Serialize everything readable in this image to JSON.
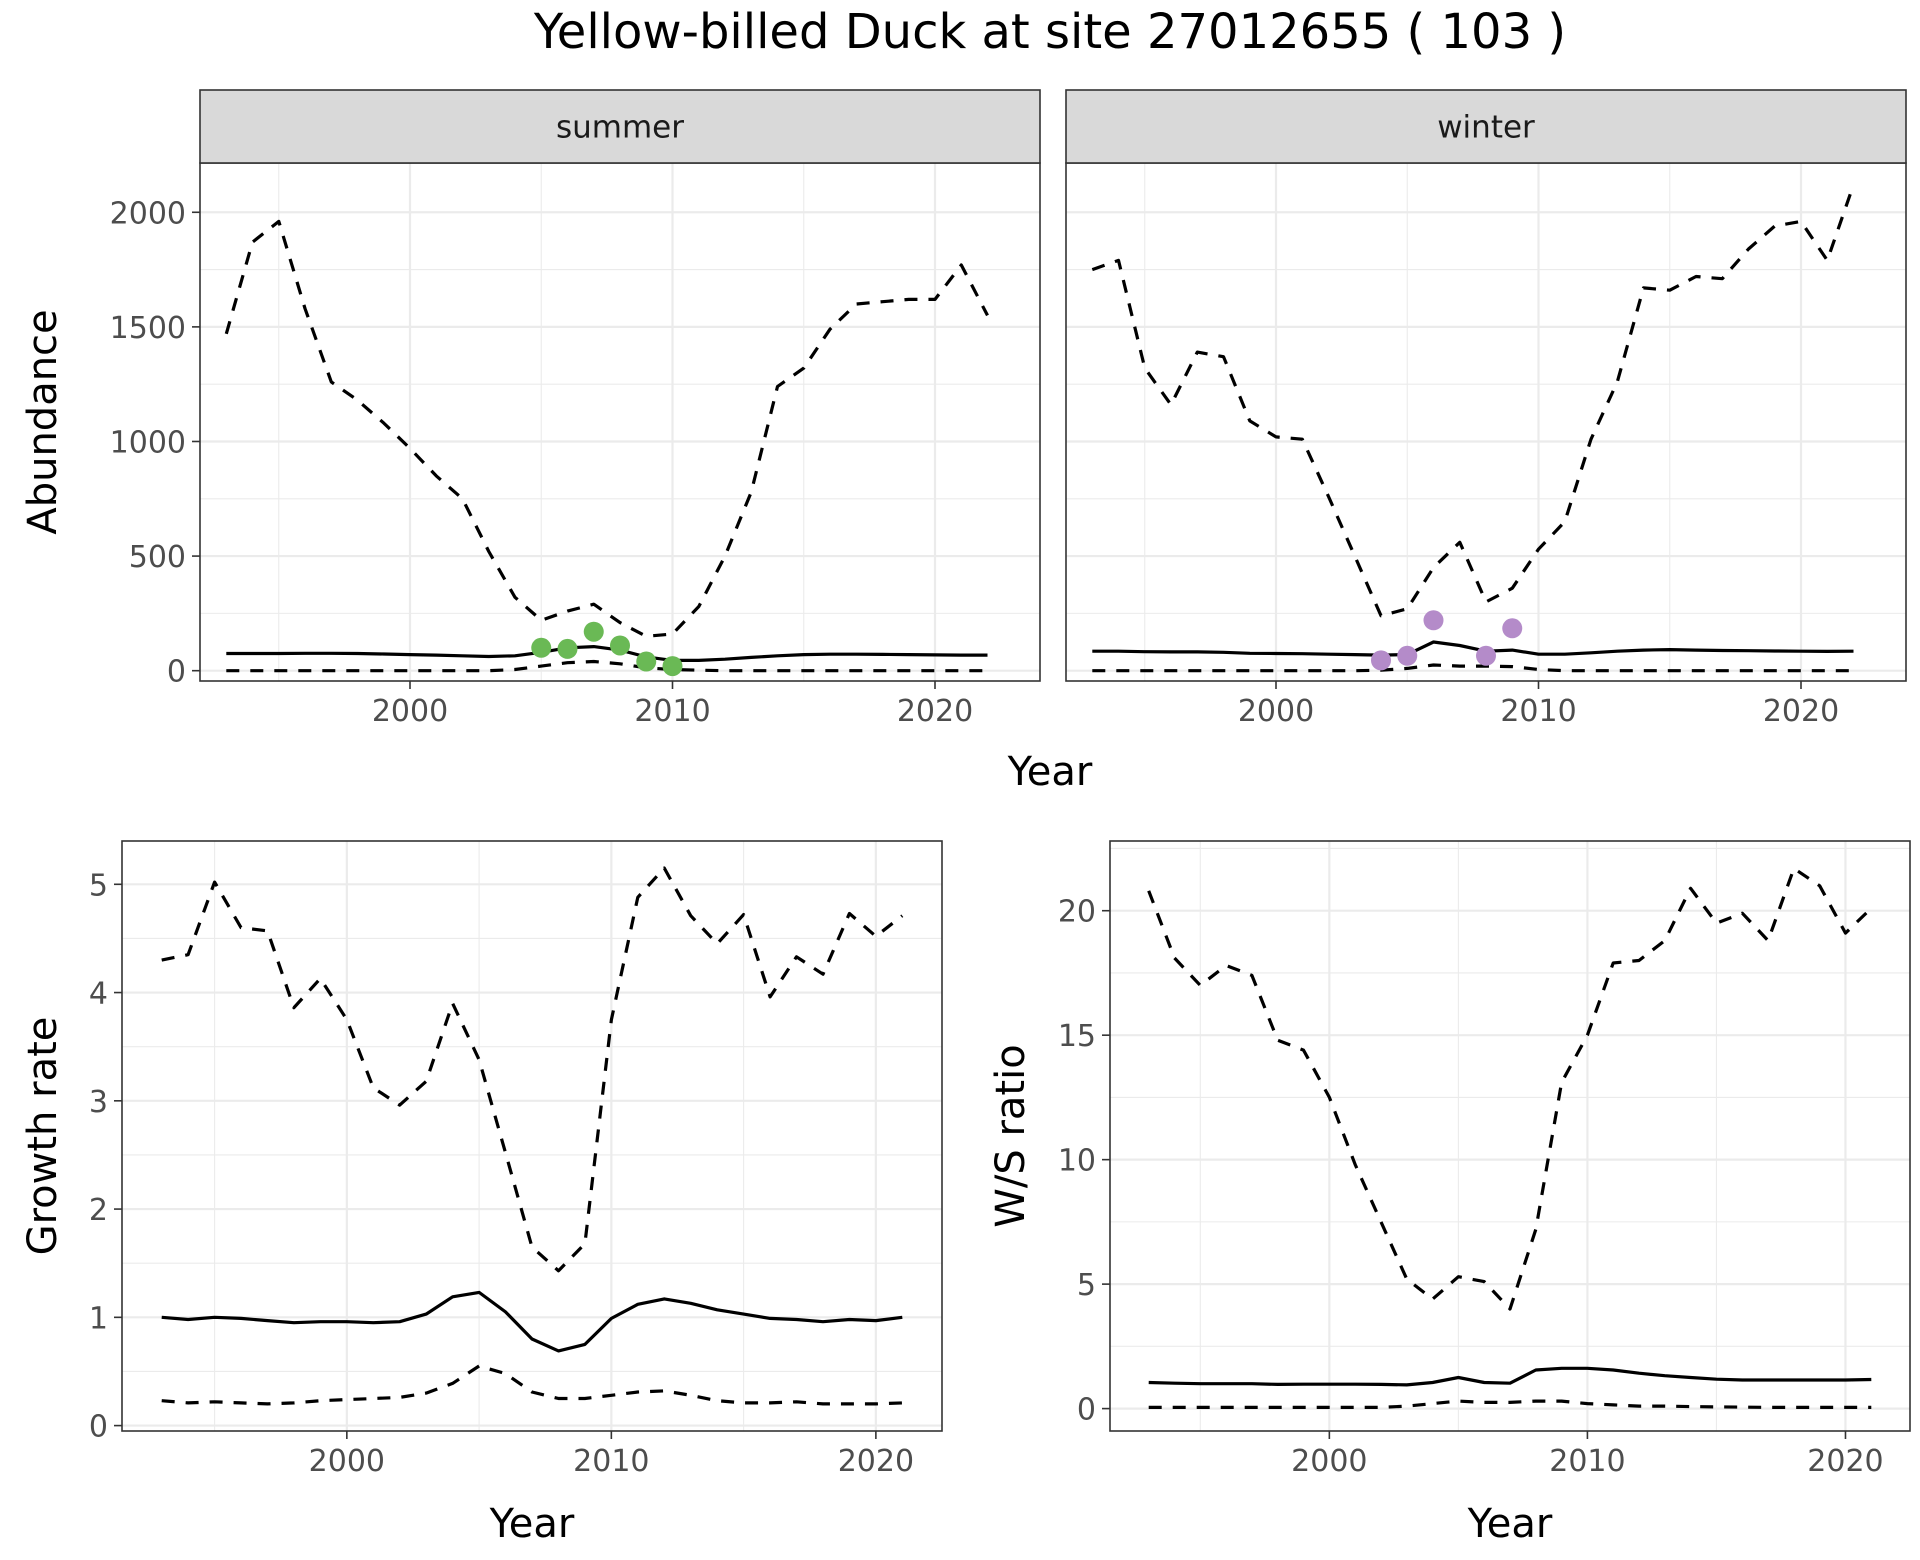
{
  "figure": {
    "title": "Yellow-billed Duck at site 27012655 ( 103 )"
  },
  "chart_data": [
    {
      "type": "line",
      "panel": "summer",
      "strip_label": "summer",
      "xlabel": "Year",
      "ylabel": "Abundance",
      "xlim": [
        1992,
        2024
      ],
      "ylim": [
        -45,
        2215
      ],
      "xticks": [
        2000,
        2010,
        2020
      ],
      "yticks": [
        0,
        500,
        1000,
        1500,
        2000
      ],
      "grid": true,
      "x": [
        1993,
        1994,
        1995,
        1996,
        1997,
        1998,
        1999,
        2000,
        2001,
        2002,
        2003,
        2004,
        2005,
        2006,
        2007,
        2008,
        2009,
        2010,
        2011,
        2012,
        2013,
        2014,
        2015,
        2016,
        2017,
        2018,
        2019,
        2020,
        2021,
        2022
      ],
      "series": [
        {
          "role": "mean",
          "values": [
            75,
            75,
            75,
            76,
            76,
            75,
            73,
            70,
            68,
            65,
            62,
            65,
            80,
            100,
            105,
            90,
            60,
            45,
            45,
            50,
            58,
            65,
            70,
            72,
            72,
            71,
            70,
            69,
            68,
            68
          ]
        },
        {
          "role": "upper",
          "values": [
            1470,
            1870,
            1960,
            1580,
            1260,
            1180,
            1080,
            970,
            850,
            750,
            520,
            320,
            220,
            260,
            290,
            210,
            150,
            160,
            280,
            500,
            780,
            1240,
            1320,
            1490,
            1600,
            1610,
            1620,
            1620,
            1770,
            1550
          ]
        },
        {
          "role": "lower",
          "values": [
            0,
            0,
            0,
            0,
            0,
            0,
            0,
            0,
            0,
            0,
            0,
            5,
            20,
            35,
            40,
            30,
            12,
            5,
            2,
            0,
            0,
            0,
            0,
            0,
            0,
            0,
            0,
            0,
            0,
            0
          ]
        }
      ],
      "points": {
        "color": "#6ab955",
        "x": [
          2005,
          2006,
          2007,
          2008,
          2009,
          2010
        ],
        "y": [
          100,
          95,
          170,
          110,
          40,
          20
        ]
      }
    },
    {
      "type": "line",
      "panel": "winter",
      "strip_label": "winter",
      "xlabel": "Year",
      "ylabel": "Abundance",
      "xlim": [
        1992,
        2024
      ],
      "ylim": [
        -45,
        2215
      ],
      "xticks": [
        2000,
        2010,
        2020
      ],
      "yticks": [
        0,
        500,
        1000,
        1500,
        2000
      ],
      "grid": true,
      "x": [
        1993,
        1994,
        1995,
        1996,
        1997,
        1998,
        1999,
        2000,
        2001,
        2002,
        2003,
        2004,
        2005,
        2006,
        2007,
        2008,
        2009,
        2010,
        2011,
        2012,
        2013,
        2014,
        2015,
        2016,
        2017,
        2018,
        2019,
        2020,
        2021,
        2022
      ],
      "series": [
        {
          "role": "mean",
          "values": [
            85,
            85,
            83,
            82,
            82,
            80,
            76,
            75,
            74,
            72,
            70,
            68,
            70,
            125,
            110,
            85,
            90,
            72,
            72,
            78,
            85,
            90,
            92,
            90,
            88,
            87,
            86,
            85,
            84,
            85
          ]
        },
        {
          "role": "upper",
          "values": [
            1750,
            1790,
            1320,
            1160,
            1390,
            1370,
            1090,
            1020,
            1010,
            760,
            500,
            240,
            270,
            450,
            560,
            300,
            360,
            530,
            650,
            1010,
            1260,
            1670,
            1660,
            1720,
            1710,
            1840,
            1940,
            1960,
            1790,
            2120
          ]
        },
        {
          "role": "lower",
          "values": [
            0,
            0,
            0,
            0,
            0,
            0,
            0,
            0,
            0,
            0,
            0,
            2,
            10,
            25,
            20,
            20,
            18,
            5,
            0,
            0,
            0,
            0,
            0,
            0,
            0,
            0,
            0,
            0,
            0,
            0
          ]
        }
      ],
      "points": {
        "color": "#b48bc9",
        "x": [
          2004,
          2005,
          2006,
          2008,
          2009
        ],
        "y": [
          45,
          65,
          220,
          65,
          185
        ]
      }
    },
    {
      "type": "line",
      "panel": "growth",
      "xlabel": "Year",
      "ylabel": "Growth rate",
      "xlim": [
        1991.5,
        2022.5
      ],
      "ylim": [
        -0.05,
        5.4
      ],
      "xticks": [
        2000,
        2010,
        2020
      ],
      "yticks": [
        0,
        1,
        2,
        3,
        4,
        5
      ],
      "grid": true,
      "x": [
        1993,
        1994,
        1995,
        1996,
        1997,
        1998,
        1999,
        2000,
        2001,
        2002,
        2003,
        2004,
        2005,
        2006,
        2007,
        2008,
        2009,
        2010,
        2011,
        2012,
        2013,
        2014,
        2015,
        2016,
        2017,
        2018,
        2019,
        2020,
        2021
      ],
      "series": [
        {
          "role": "mean",
          "values": [
            1.0,
            0.98,
            1.0,
            0.99,
            0.97,
            0.95,
            0.96,
            0.96,
            0.95,
            0.96,
            1.03,
            1.19,
            1.23,
            1.05,
            0.8,
            0.69,
            0.75,
            0.99,
            1.12,
            1.17,
            1.13,
            1.07,
            1.03,
            0.99,
            0.98,
            0.96,
            0.98,
            0.97,
            1.0
          ]
        },
        {
          "role": "upper",
          "values": [
            4.3,
            4.35,
            5.02,
            4.6,
            4.57,
            3.86,
            4.13,
            3.75,
            3.12,
            2.96,
            3.18,
            3.9,
            3.38,
            2.52,
            1.65,
            1.43,
            1.68,
            3.75,
            4.88,
            5.15,
            4.71,
            4.45,
            4.72,
            3.96,
            4.33,
            4.17,
            4.73,
            4.52,
            4.71
          ]
        },
        {
          "role": "lower",
          "values": [
            0.23,
            0.21,
            0.22,
            0.21,
            0.2,
            0.21,
            0.23,
            0.24,
            0.25,
            0.26,
            0.3,
            0.39,
            0.55,
            0.48,
            0.31,
            0.25,
            0.25,
            0.28,
            0.31,
            0.32,
            0.28,
            0.23,
            0.21,
            0.21,
            0.22,
            0.2,
            0.2,
            0.2,
            0.21
          ]
        }
      ]
    },
    {
      "type": "line",
      "panel": "ratio",
      "xlabel": "Year",
      "ylabel": "W/S ratio",
      "xlim": [
        1991.5,
        2022.5
      ],
      "ylim": [
        -0.9,
        22.8
      ],
      "xticks": [
        2000,
        2010,
        2020
      ],
      "yticks": [
        0,
        5,
        10,
        15,
        20
      ],
      "grid": true,
      "x": [
        1993,
        1994,
        1995,
        1996,
        1997,
        1998,
        1999,
        2000,
        2001,
        2002,
        2003,
        2004,
        2005,
        2006,
        2007,
        2008,
        2009,
        2010,
        2011,
        2012,
        2013,
        2014,
        2015,
        2016,
        2017,
        2018,
        2019,
        2020,
        2021
      ],
      "series": [
        {
          "role": "mean",
          "values": [
            1.05,
            1.02,
            1.0,
            1.0,
            1.0,
            0.97,
            0.98,
            0.98,
            0.98,
            0.97,
            0.95,
            1.05,
            1.25,
            1.05,
            1.02,
            1.55,
            1.62,
            1.62,
            1.55,
            1.42,
            1.32,
            1.25,
            1.18,
            1.15,
            1.15,
            1.15,
            1.15,
            1.15,
            1.17
          ]
        },
        {
          "role": "upper",
          "values": [
            20.8,
            18.1,
            17.0,
            17.8,
            17.4,
            14.8,
            14.4,
            12.5,
            9.8,
            7.5,
            5.2,
            4.4,
            5.3,
            5.1,
            4.0,
            7.2,
            13.1,
            15.0,
            17.9,
            18.0,
            18.8,
            20.9,
            19.5,
            19.9,
            18.8,
            21.7,
            21.0,
            19.1,
            20.1
          ]
        },
        {
          "role": "lower",
          "values": [
            0.05,
            0.05,
            0.05,
            0.05,
            0.05,
            0.05,
            0.05,
            0.05,
            0.05,
            0.05,
            0.1,
            0.2,
            0.3,
            0.25,
            0.25,
            0.3,
            0.3,
            0.2,
            0.15,
            0.1,
            0.1,
            0.08,
            0.07,
            0.06,
            0.05,
            0.05,
            0.05,
            0.05,
            0.05
          ]
        }
      ]
    }
  ]
}
